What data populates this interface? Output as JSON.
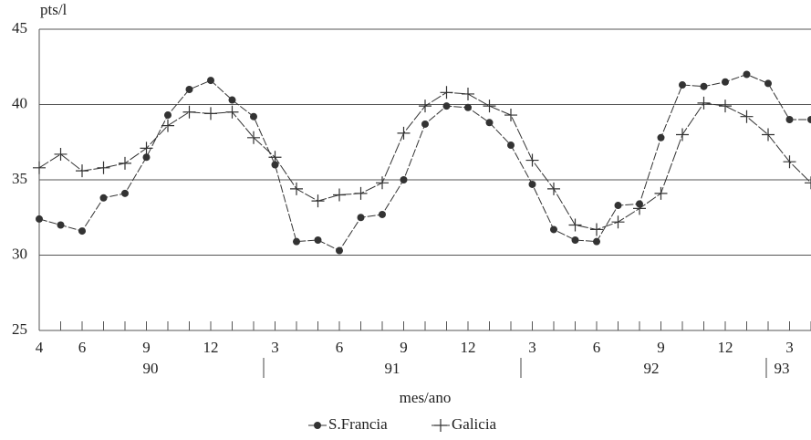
{
  "chart_data": {
    "type": "line",
    "y_label": "pts/l",
    "x_label": "mes/ano",
    "categories": [
      "4",
      null,
      "6",
      null,
      null,
      "9",
      null,
      null,
      "12",
      null,
      null,
      "3",
      null,
      null,
      "6",
      null,
      null,
      "9",
      null,
      null,
      "12",
      null,
      null,
      "3",
      null,
      null,
      "6",
      null,
      null,
      "9",
      null,
      null,
      "12",
      null,
      null,
      "3",
      null
    ],
    "year_labels": [
      "90",
      "91",
      "92",
      "93"
    ],
    "series": [
      {
        "name": "S.Francia",
        "color": "#333333",
        "marker": "circle",
        "values": [
          32.4,
          32.0,
          31.6,
          33.8,
          34.1,
          36.5,
          39.3,
          41.0,
          41.6,
          40.3,
          39.2,
          36.0,
          30.9,
          31.0,
          30.3,
          32.5,
          32.7,
          35.0,
          38.7,
          39.9,
          39.8,
          38.8,
          37.3,
          34.7,
          31.7,
          31.0,
          30.9,
          33.3,
          33.4,
          37.8,
          41.3,
          41.2,
          41.5,
          42.0,
          41.4,
          39.0,
          39.0
        ]
      },
      {
        "name": "Galicia",
        "color": "#333333",
        "marker": "plus",
        "values": [
          35.8,
          36.7,
          35.6,
          35.8,
          36.1,
          37.1,
          38.6,
          39.5,
          39.4,
          39.5,
          37.8,
          36.5,
          34.4,
          33.6,
          34.0,
          34.1,
          34.8,
          38.1,
          39.9,
          40.8,
          40.7,
          39.9,
          39.3,
          36.3,
          34.4,
          32.0,
          31.7,
          32.2,
          33.1,
          34.1,
          38.0,
          40.1,
          39.9,
          39.2,
          38.0,
          36.2,
          34.8
        ]
      }
    ],
    "ylim": [
      25,
      45
    ],
    "yticks": [
      25,
      30,
      35,
      40,
      45
    ],
    "grid": true
  }
}
